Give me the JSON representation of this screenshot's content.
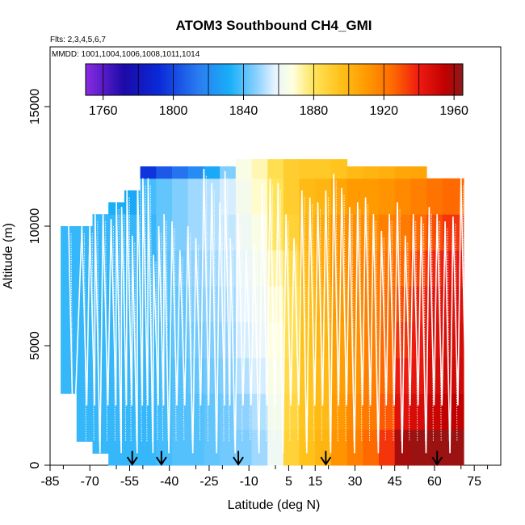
{
  "chart_data": {
    "type": "heatmap",
    "title": "ATOM3 Southbound CH4_GMI",
    "flights_note": "Flts: 2,3,4,5,6,7",
    "dates_note": "MMDD: 1001,1004,1006,1008,1011,1014",
    "xlabel": "Latitude (deg N)",
    "ylabel": "Altitude (m)",
    "xlim": [
      -85,
      85
    ],
    "ylim": [
      0,
      17500
    ],
    "x_ticks": [
      -85,
      -70,
      -55,
      -40,
      -25,
      -10,
      5,
      15,
      30,
      45,
      60,
      75
    ],
    "y_ticks": [
      0,
      5000,
      10000,
      15000
    ],
    "colorbar": {
      "min": 1750,
      "max": 1965,
      "tick_values": [
        1760,
        1800,
        1840,
        1880,
        1920,
        1960
      ],
      "tick_labels": [
        "1760",
        "1800",
        "1840",
        "1880",
        "1920",
        "1960"
      ],
      "color_stops": [
        {
          "value": 1750,
          "color": "#8a2be2"
        },
        {
          "value": 1772,
          "color": "#1c0aa8"
        },
        {
          "value": 1792,
          "color": "#0a2ad8"
        },
        {
          "value": 1815,
          "color": "#2a7ef2"
        },
        {
          "value": 1832,
          "color": "#18aef8"
        },
        {
          "value": 1848,
          "color": "#8fd2ff"
        },
        {
          "value": 1858,
          "color": "#e6f4ff"
        },
        {
          "value": 1868,
          "color": "#ffffe0"
        },
        {
          "value": 1880,
          "color": "#ffe45a"
        },
        {
          "value": 1895,
          "color": "#ffc21a"
        },
        {
          "value": 1910,
          "color": "#ff9a00"
        },
        {
          "value": 1925,
          "color": "#ff6a00"
        },
        {
          "value": 1940,
          "color": "#ee1a10"
        },
        {
          "value": 1955,
          "color": "#c00000"
        },
        {
          "value": 1965,
          "color": "#8b1a1a"
        }
      ]
    },
    "curtain": {
      "lat_edges": [
        -81,
        -75,
        -69,
        -63,
        -57,
        -51,
        -45,
        -39,
        -33,
        -27,
        -21,
        -15,
        -9,
        -3,
        3,
        9,
        15,
        21,
        27,
        33,
        39,
        45,
        51,
        57,
        63,
        71
      ],
      "top_altitude": [
        10000,
        10000,
        10500,
        11000,
        11500,
        12500,
        12500,
        12500,
        12500,
        12500,
        12500,
        12800,
        12800,
        12800,
        12800,
        12800,
        12800,
        12800,
        12500,
        12500,
        12500,
        12500,
        12500,
        12000,
        12000
      ],
      "bottom_altitude": [
        3000,
        1000,
        500,
        0,
        0,
        0,
        0,
        0,
        0,
        0,
        0,
        0,
        0,
        0,
        0,
        0,
        0,
        0,
        0,
        0,
        0,
        0,
        0,
        0,
        0
      ],
      "altitude_levels": [
        0,
        1500,
        3000,
        4500,
        6000,
        7500,
        9000,
        10500,
        12000
      ],
      "values": [
        [
          1836,
          1836,
          1836,
          1836,
          1836,
          1836,
          1836,
          1836,
          1833
        ],
        [
          1836,
          1836,
          1836,
          1836,
          1836,
          1836,
          1836,
          1836,
          1830
        ],
        [
          1836,
          1836,
          1836,
          1836,
          1836,
          1836,
          1836,
          1834,
          1818
        ],
        [
          1836,
          1836,
          1836,
          1836,
          1836,
          1836,
          1836,
          1832,
          1790
        ],
        [
          1836,
          1836,
          1836,
          1836,
          1836,
          1836,
          1836,
          1830,
          1810
        ],
        [
          1836,
          1836,
          1836,
          1836,
          1836,
          1836,
          1836,
          1838,
          1795
        ],
        [
          1838,
          1838,
          1838,
          1838,
          1840,
          1840,
          1842,
          1842,
          1805
        ],
        [
          1840,
          1840,
          1840,
          1842,
          1842,
          1844,
          1846,
          1846,
          1812
        ],
        [
          1840,
          1840,
          1842,
          1844,
          1846,
          1848,
          1850,
          1850,
          1820
        ],
        [
          1842,
          1842,
          1844,
          1846,
          1848,
          1850,
          1852,
          1852,
          1830
        ],
        [
          1844,
          1844,
          1846,
          1848,
          1850,
          1852,
          1854,
          1856,
          1846
        ],
        [
          1846,
          1848,
          1852,
          1856,
          1858,
          1860,
          1862,
          1864,
          1866
        ],
        [
          1850,
          1852,
          1856,
          1860,
          1862,
          1864,
          1866,
          1870,
          1872
        ],
        [
          1862,
          1864,
          1866,
          1868,
          1870,
          1874,
          1880,
          1880,
          1882
        ],
        [
          1888,
          1886,
          1884,
          1882,
          1882,
          1884,
          1888,
          1890,
          1890
        ],
        [
          1895,
          1894,
          1894,
          1895,
          1896,
          1898,
          1900,
          1898,
          1892
        ],
        [
          1900,
          1898,
          1898,
          1900,
          1902,
          1904,
          1904,
          1900,
          1892
        ],
        [
          1912,
          1910,
          1908,
          1908,
          1910,
          1912,
          1912,
          1906,
          1894
        ],
        [
          1918,
          1915,
          1912,
          1913,
          1915,
          1916,
          1914,
          1910,
          1898
        ],
        [
          1925,
          1920,
          1918,
          1918,
          1918,
          1918,
          1914,
          1910,
          1900
        ],
        [
          1935,
          1928,
          1925,
          1925,
          1924,
          1922,
          1918,
          1912,
          1902
        ],
        [
          1960,
          1945,
          1940,
          1935,
          1930,
          1925,
          1920,
          1915,
          1905
        ],
        [
          1962,
          1948,
          1942,
          1940,
          1938,
          1932,
          1925,
          1918,
          1906
        ],
        [
          1962,
          1952,
          1948,
          1946,
          1944,
          1938,
          1930,
          1922,
          1910
        ],
        [
          1962,
          1955,
          1950,
          1948,
          1946,
          1942,
          1935,
          1925,
          1912
        ]
      ]
    },
    "flight_track_latitudes": [
      -78,
      -73,
      -70,
      -68,
      -65,
      -62,
      -60,
      -58,
      -56,
      -54,
      -52,
      -50,
      -48,
      -46,
      -44,
      -42,
      -39,
      -36,
      -33,
      -30,
      -27,
      -24,
      -21,
      -19,
      -17,
      -14,
      -11,
      -8,
      -5,
      -2,
      1,
      4,
      7,
      10,
      13,
      16,
      19,
      22,
      25,
      28,
      31,
      34,
      37,
      40,
      43,
      46,
      49,
      52,
      55,
      58,
      61,
      64,
      67,
      70
    ],
    "flight_track_tops": [
      10000,
      10000,
      10000,
      10500,
      10500,
      10300,
      11000,
      10800,
      11500,
      9600,
      12000,
      12000,
      12000,
      8800,
      10000,
      10500,
      10200,
      9000,
      10000,
      9500,
      12400,
      11800,
      11000,
      12300,
      9500,
      10500,
      9000,
      9300,
      11800,
      12000,
      11800,
      10500,
      9500,
      11500,
      11200,
      11000,
      11500,
      12200,
      11600,
      10800,
      11000,
      11200,
      10500,
      9800,
      10500,
      11000,
      9600,
      10500,
      10400,
      10800,
      10500,
      10200,
      10400,
      12000
    ],
    "markers": [
      {
        "latitude": -54,
        "label": "arrow"
      },
      {
        "latitude": -43,
        "label": "arrow"
      },
      {
        "latitude": -14,
        "label": "arrow"
      },
      {
        "latitude": 19,
        "label": "arrow"
      },
      {
        "latitude": 61,
        "label": "arrow"
      }
    ]
  }
}
